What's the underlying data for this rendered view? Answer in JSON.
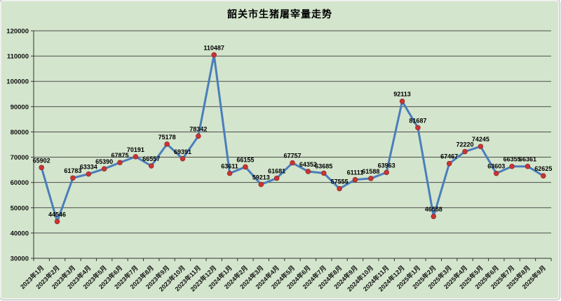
{
  "chart_data": {
    "type": "line",
    "title": "韶关市生猪屠宰量走势",
    "xlabel": "",
    "ylabel": "",
    "categories": [
      "2023年1月",
      "2023年2月",
      "2023年3月",
      "2023年4月",
      "2023年5月",
      "2023年6月",
      "2023年7月",
      "2023年8月",
      "2023年9月",
      "2023年10月",
      "2023年11月",
      "2023年12月",
      "2024年1月",
      "2024年2月",
      "2024年3月",
      "2024年4月",
      "2024年5月",
      "2024年6月",
      "2024年7月",
      "2024年8月",
      "2024年9月",
      "2024年10月",
      "2024年11月",
      "2024年12月",
      "2025年1月",
      "2025年2月",
      "2025年3月",
      "2025年4月",
      "2025年5月",
      "2025年6月",
      "2025年7月",
      "2025年8月",
      "2025年9月"
    ],
    "values": [
      65902,
      44546,
      61783,
      63334,
      65390,
      67875,
      70191,
      66557,
      75178,
      69391,
      78342,
      110487,
      63611,
      66155,
      59213,
      61681,
      67757,
      64352,
      63685,
      57555,
      61111,
      61588,
      63963,
      92113,
      81687,
      46558,
      67467,
      72220,
      74245,
      63603,
      66355,
      66361,
      62625
    ],
    "ylim": [
      30000,
      120000
    ],
    "ytick_step": 10000,
    "ytick_labels": [
      "30000",
      "40000",
      "50000",
      "60000",
      "70000",
      "80000",
      "90000",
      "100000",
      "110000",
      "120000"
    ],
    "grid": true,
    "legend_position": "none",
    "data_labels_shown": true,
    "xtick_rotation_deg": -45,
    "colors": {
      "background": "#d3e5cc",
      "line": "#4a7ebb",
      "marker": "#cc3333",
      "marker_edge": "#8f2b2b",
      "gridline": "#4d4d4d",
      "axis": "#333333",
      "text": "#000000",
      "frame": "#f0f0f0"
    }
  }
}
